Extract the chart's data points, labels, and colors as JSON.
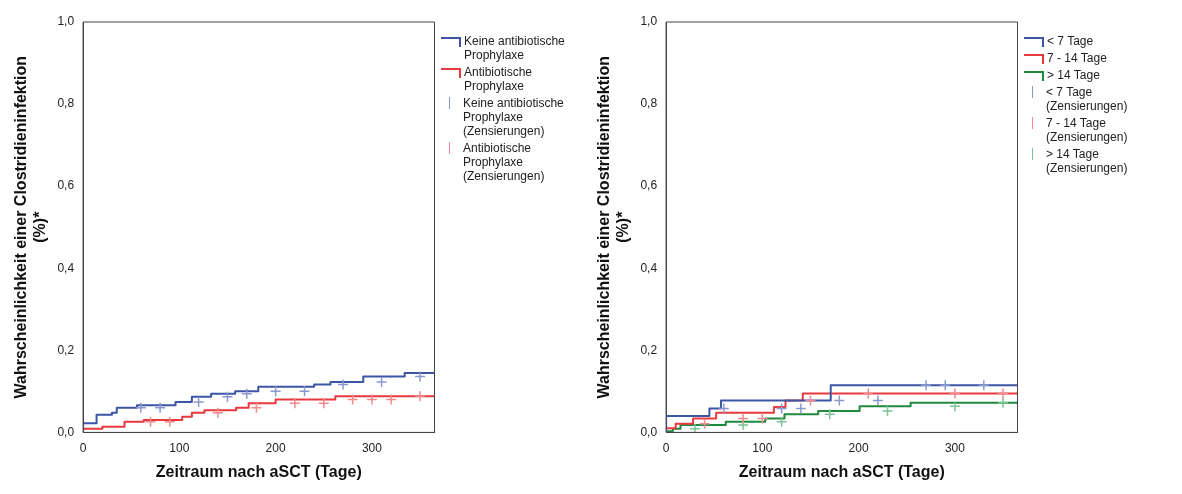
{
  "chart_data": [
    {
      "type": "step",
      "xlabel": "Zeitraum nach aSCT (Tage)",
      "ylabel": "Wahrscheinlichkeit einer Clostridieninfektion (%)*",
      "xlim": [
        0,
        365
      ],
      "xticks": [
        0,
        100,
        200,
        300
      ],
      "ylim": [
        0,
        1
      ],
      "yticks": [
        {
          "value": 0,
          "label": "0,0"
        },
        {
          "value": 0.2,
          "label": "0,2"
        },
        {
          "value": 0.4,
          "label": "0,4"
        },
        {
          "value": 0.6,
          "label": "0,6"
        },
        {
          "value": 0.8,
          "label": "0,8"
        },
        {
          "value": 1,
          "label": "1,0"
        }
      ],
      "grid": false,
      "legend": "right",
      "series": [
        {
          "name": "Keine antibiotische Prophylaxe",
          "color": "#3c55a5",
          "x": [
            0,
            14,
            30,
            35,
            56,
            96,
            113,
            133,
            158,
            182,
            240,
            257,
            291,
            334,
            361,
            365
          ],
          "values": [
            0.002,
            0.022,
            0.043,
            0.048,
            0.06,
            0.066,
            0.074,
            0.087,
            0.094,
            0.1,
            0.111,
            0.117,
            0.123,
            0.136,
            0.145,
            0.145
          ]
        },
        {
          "name": "Antibiotische Prophylaxe",
          "color": "#e8393f",
          "x": [
            0,
            20,
            43,
            63,
            103,
            113,
            126,
            159,
            172,
            200,
            262,
            339,
            365
          ],
          "values": [
            0,
            0.009,
            0.014,
            0.026,
            0.03,
            0.038,
            0.048,
            0.054,
            0.06,
            0.071,
            0.08,
            0.088,
            0.088
          ]
        },
        {
          "name": "Keine antibiotische Prophylaxe (Zensierungen)",
          "type": "scatter",
          "marker": "cross",
          "color": "#8a98d0",
          "x": [
            60,
            80,
            120,
            150,
            170,
            200,
            230,
            270,
            310,
            350
          ],
          "values": [
            0.06,
            0.06,
            0.074,
            0.087,
            0.094,
            0.1,
            0.1,
            0.117,
            0.123,
            0.136
          ]
        },
        {
          "name": "Antibiotische Prophylaxe (Zensierungen)",
          "type": "scatter",
          "marker": "cross",
          "color": "#f08a8e",
          "x": [
            70,
            90,
            140,
            180,
            220,
            250,
            280,
            300,
            320,
            350
          ],
          "values": [
            0.026,
            0.026,
            0.048,
            0.06,
            0.071,
            0.071,
            0.08,
            0.08,
            0.08,
            0.088
          ]
        }
      ]
    },
    {
      "type": "step",
      "xlabel": "Zeitraum nach aSCT (Tage)",
      "ylabel": "Wahrscheinlichkeit einer Clostridieninfektion (%)*",
      "xlim": [
        0,
        365
      ],
      "xticks": [
        0,
        100,
        200,
        300
      ],
      "ylim": [
        0,
        1
      ],
      "yticks": [
        {
          "value": 0,
          "label": "0,0"
        },
        {
          "value": 0.2,
          "label": "0,2"
        },
        {
          "value": 0.4,
          "label": "0,4"
        },
        {
          "value": 0.6,
          "label": "0,6"
        },
        {
          "value": 0.8,
          "label": "0,8"
        },
        {
          "value": 1,
          "label": "1,0"
        }
      ],
      "grid": false,
      "legend": "right",
      "series": [
        {
          "name": "< 7 Tage",
          "color": "#3c55a5",
          "x": [
            0,
            45,
            57,
            171,
            264,
            365
          ],
          "values": [
            0,
            0.04,
            0.058,
            0.078,
            0.115,
            0.115
          ]
        },
        {
          "name": "7 - 14 Tage",
          "color": "#e8393f",
          "x": [
            0,
            10,
            28,
            52,
            112,
            124,
            142,
            198,
            365
          ],
          "values": [
            0,
            0.01,
            0.021,
            0.034,
            0.048,
            0.062,
            0.078,
            0.095,
            0.095
          ]
        },
        {
          "name": "> 14 Tage",
          "color": "#1f8a3e",
          "x": [
            0,
            7,
            15,
            62,
            103,
            123,
            158,
            201,
            254,
            338,
            365
          ],
          "values": [
            0,
            0.003,
            0.009,
            0.018,
            0.026,
            0.034,
            0.044,
            0.052,
            0.064,
            0.072,
            0.072
          ]
        },
        {
          "name": "< 7 Tage (Zensierungen)",
          "type": "scatter",
          "marker": "cross",
          "color": "#8a98d0",
          "x": [
            60,
            120,
            140,
            180,
            220,
            270,
            290,
            330
          ],
          "values": [
            0.058,
            0.058,
            0.058,
            0.078,
            0.078,
            0.115,
            0.115,
            0.115
          ]
        },
        {
          "name": "7 - 14 Tage (Zensierungen)",
          "type": "scatter",
          "marker": "cross",
          "color": "#f08a8e",
          "x": [
            40,
            80,
            100,
            150,
            210,
            300,
            350
          ],
          "values": [
            0.021,
            0.034,
            0.034,
            0.078,
            0.095,
            0.095,
            0.095
          ]
        },
        {
          "name": "> 14 Tage (Zensierungen)",
          "type": "scatter",
          "marker": "cross",
          "color": "#7cc495",
          "x": [
            30,
            80,
            120,
            170,
            230,
            300,
            350
          ],
          "values": [
            0.009,
            0.018,
            0.026,
            0.044,
            0.052,
            0.064,
            0.072
          ]
        }
      ]
    }
  ]
}
